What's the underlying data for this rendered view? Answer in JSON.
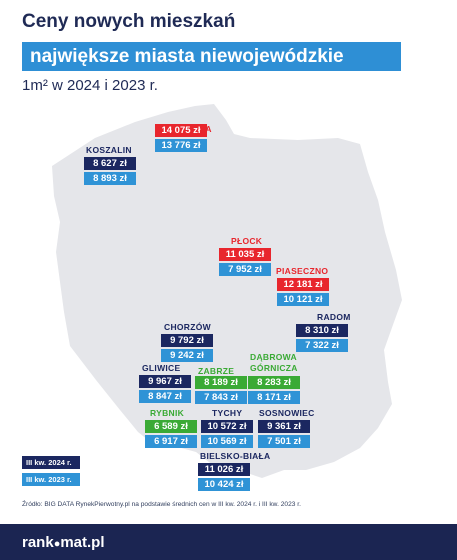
{
  "header": {
    "title": "Ceny nowych mieszkań",
    "subtitle": "największe miasta niewojewódzkie",
    "unit": "1m² w 2024 i 2023 r."
  },
  "colors": {
    "navy": "#1b2760",
    "light_blue": "#2f93d6",
    "red": "#e8262d",
    "green": "#3aaa35",
    "map": "#e5e6ea",
    "accent_blue": "#2e8fd5"
  },
  "legend": {
    "current": "III kw. 2024 r.",
    "previous": "III kw. 2023 r."
  },
  "source": "Źródło: BIG DATA RynekPierwotny.pl na podstawie średnich cen w III kw. 2024 r. i III kw. 2023 r.",
  "footer": {
    "logo_left": "rank",
    "logo_dot": "●",
    "logo_right": "mat.pl"
  },
  "chart_data": {
    "type": "table",
    "series": [
      {
        "name": "III kw. 2024 r."
      },
      {
        "name": "III kw. 2023 r."
      }
    ],
    "cities": [
      {
        "name": "Gdynia",
        "current": "14 075 zł",
        "previous": "13 776 zł",
        "highlight": "red"
      },
      {
        "name": "Koszalin",
        "current": "8 627 zł",
        "previous": "8 893 zł",
        "highlight": "navy"
      },
      {
        "name": "Płock",
        "current": "11 035 zł",
        "previous": "7 952 zł",
        "highlight": "red"
      },
      {
        "name": "Piaseczno",
        "current": "12 181 zł",
        "previous": "10 121 zł",
        "highlight": "red"
      },
      {
        "name": "Radom",
        "current": "8 310 zł",
        "previous": "7 322 zł",
        "highlight": "navy"
      },
      {
        "name": "Chorzów",
        "current": "9 792 zł",
        "previous": "9 242 zł",
        "highlight": "navy"
      },
      {
        "name": "Dąbrowa Górnicza",
        "name_lines": [
          "Dąbrowa",
          "Górnicza"
        ],
        "current": "8 283 zł",
        "previous": "8 171 zł",
        "highlight": "green"
      },
      {
        "name": "Gliwice",
        "current": "9 967 zł",
        "previous": "8 847 zł",
        "highlight": "navy"
      },
      {
        "name": "Zabrze",
        "current": "8 189 zł",
        "previous": "7 843 zł",
        "highlight": "green"
      },
      {
        "name": "Rybnik",
        "current": "6 589 zł",
        "previous": "6 917 zł",
        "highlight": "green"
      },
      {
        "name": "Tychy",
        "current": "10 572 zł",
        "previous": "10 569 zł",
        "highlight": "navy"
      },
      {
        "name": "Sosnowiec",
        "current": "9 361 zł",
        "previous": "7 501 zł",
        "highlight": "navy"
      },
      {
        "name": "Bielsko-Biała",
        "current": "11 026 zł",
        "previous": "10 424 zł",
        "highlight": "navy"
      }
    ]
  }
}
